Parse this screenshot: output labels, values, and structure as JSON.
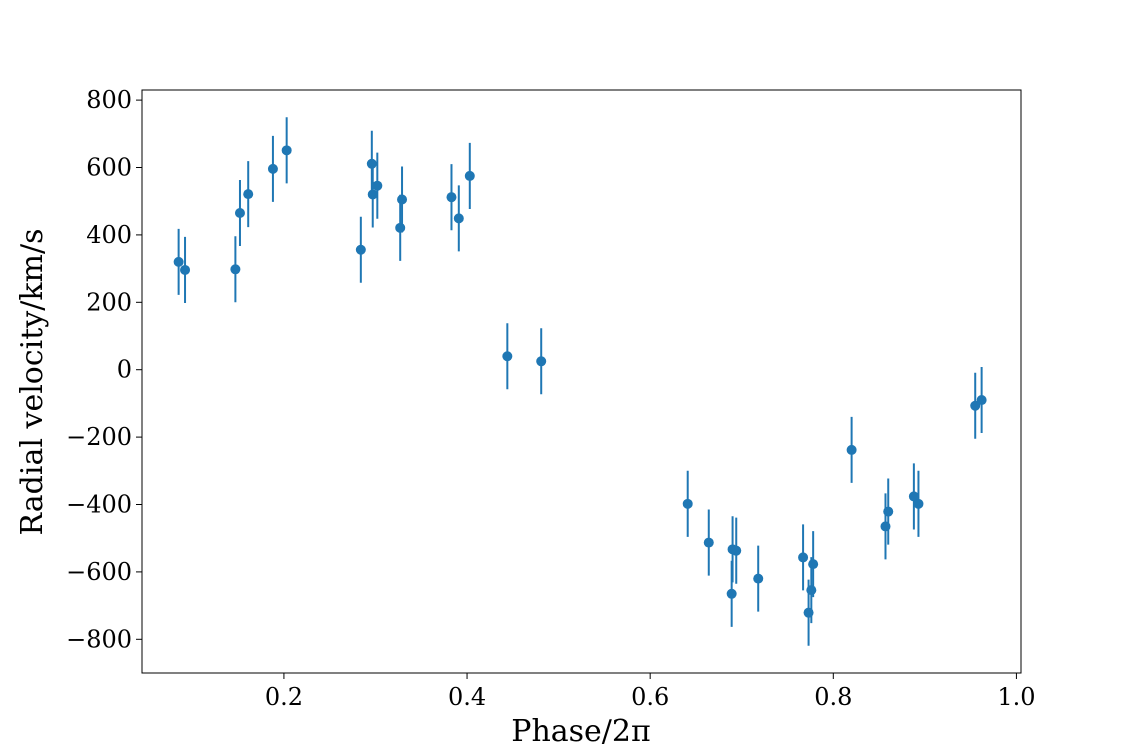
{
  "chart_data": {
    "type": "scatter",
    "title": "",
    "xlabel": "Phase/2π",
    "ylabel": "Radial velocity/km/s",
    "xlim": [
      0.045,
      1.005
    ],
    "ylim": [
      -900,
      830
    ],
    "x_ticks": [
      0.2,
      0.4,
      0.6,
      0.8,
      1.0
    ],
    "x_tick_labels": [
      "0.2",
      "0.4",
      "0.6",
      "0.8",
      "1.0"
    ],
    "y_ticks": [
      800,
      600,
      400,
      200,
      0,
      -200,
      -400,
      -600,
      -800
    ],
    "y_tick_labels": [
      "800",
      "600",
      "400",
      "200",
      "0",
      "−200",
      "−400",
      "−600",
      "−800"
    ],
    "grid": false,
    "legend": false,
    "marker_color": "#1f77b4",
    "points": [
      {
        "x": 0.085,
        "y": 320,
        "yerr": 98
      },
      {
        "x": 0.092,
        "y": 296,
        "yerr": 98
      },
      {
        "x": 0.147,
        "y": 298,
        "yerr": 98
      },
      {
        "x": 0.152,
        "y": 465,
        "yerr": 98
      },
      {
        "x": 0.161,
        "y": 521,
        "yerr": 98
      },
      {
        "x": 0.188,
        "y": 596,
        "yerr": 98
      },
      {
        "x": 0.203,
        "y": 651,
        "yerr": 98
      },
      {
        "x": 0.284,
        "y": 356,
        "yerr": 98
      },
      {
        "x": 0.296,
        "y": 611,
        "yerr": 98
      },
      {
        "x": 0.297,
        "y": 520,
        "yerr": 98
      },
      {
        "x": 0.302,
        "y": 546,
        "yerr": 98
      },
      {
        "x": 0.327,
        "y": 421,
        "yerr": 98
      },
      {
        "x": 0.329,
        "y": 505,
        "yerr": 98
      },
      {
        "x": 0.383,
        "y": 512,
        "yerr": 98
      },
      {
        "x": 0.391,
        "y": 449,
        "yerr": 98
      },
      {
        "x": 0.403,
        "y": 575,
        "yerr": 98
      },
      {
        "x": 0.444,
        "y": 40,
        "yerr": 98
      },
      {
        "x": 0.481,
        "y": 25,
        "yerr": 98
      },
      {
        "x": 0.641,
        "y": -398,
        "yerr": 98
      },
      {
        "x": 0.664,
        "y": -513,
        "yerr": 98
      },
      {
        "x": 0.689,
        "y": -665,
        "yerr": 98
      },
      {
        "x": 0.69,
        "y": -533,
        "yerr": 98
      },
      {
        "x": 0.694,
        "y": -537,
        "yerr": 98
      },
      {
        "x": 0.718,
        "y": -620,
        "yerr": 98
      },
      {
        "x": 0.767,
        "y": -557,
        "yerr": 98
      },
      {
        "x": 0.773,
        "y": -721,
        "yerr": 98
      },
      {
        "x": 0.776,
        "y": -654,
        "yerr": 98
      },
      {
        "x": 0.778,
        "y": -577,
        "yerr": 98
      },
      {
        "x": 0.82,
        "y": -238,
        "yerr": 98
      },
      {
        "x": 0.857,
        "y": -465,
        "yerr": 98
      },
      {
        "x": 0.86,
        "y": -421,
        "yerr": 98
      },
      {
        "x": 0.888,
        "y": -376,
        "yerr": 98
      },
      {
        "x": 0.893,
        "y": -398,
        "yerr": 98
      },
      {
        "x": 0.955,
        "y": -107,
        "yerr": 98
      },
      {
        "x": 0.962,
        "y": -90,
        "yerr": 98
      }
    ]
  }
}
